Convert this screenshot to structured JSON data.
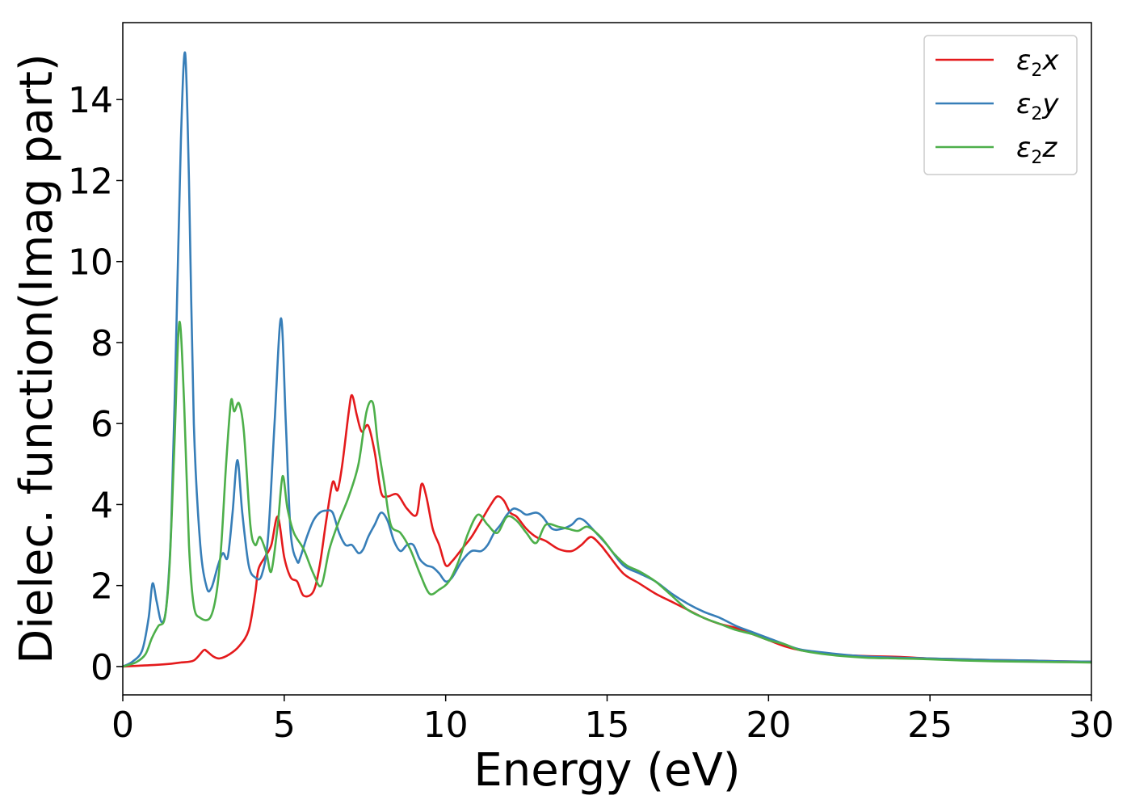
{
  "chart_data": {
    "type": "line",
    "title": "",
    "xlabel": "Energy (eV)",
    "ylabel": "Dielec. function(Imag part)",
    "xlim": [
      0,
      30
    ],
    "ylim": [
      -0.7,
      15.9
    ],
    "xticks": [
      0,
      5,
      10,
      15,
      20,
      25,
      30
    ],
    "yticks": [
      0,
      2,
      4,
      6,
      8,
      10,
      12,
      14
    ],
    "grid": false,
    "legend_position": "top-right",
    "series": [
      {
        "name": "ε2x",
        "legend_base": "ε",
        "legend_sub": "2",
        "legend_var": "x",
        "color": "#e41a1c",
        "x": [
          0,
          0.5,
          1.0,
          1.5,
          1.8,
          2.2,
          2.5,
          2.6,
          2.8,
          3.0,
          3.3,
          3.6,
          3.9,
          4.1,
          4.2,
          4.4,
          4.6,
          4.8,
          5.0,
          5.2,
          5.4,
          5.6,
          5.9,
          6.1,
          6.3,
          6.5,
          6.65,
          6.8,
          7.0,
          7.1,
          7.25,
          7.4,
          7.6,
          7.8,
          8.0,
          8.2,
          8.5,
          8.8,
          9.1,
          9.25,
          9.4,
          9.6,
          9.8,
          10.0,
          10.2,
          10.5,
          10.8,
          11.1,
          11.4,
          11.6,
          11.8,
          12.0,
          12.2,
          12.5,
          12.8,
          13.1,
          13.5,
          13.9,
          14.2,
          14.5,
          14.8,
          15.0,
          15.5,
          16.0,
          16.5,
          17.0,
          17.5,
          18.0,
          18.5,
          19.0,
          19.5,
          20.0,
          20.5,
          21.0,
          21.5,
          22.0,
          23.0,
          24.0,
          25.0,
          26.0,
          27.0,
          28.0,
          29.0,
          30.0
        ],
        "y": [
          0.0,
          0.02,
          0.04,
          0.07,
          0.1,
          0.15,
          0.4,
          0.38,
          0.25,
          0.2,
          0.3,
          0.5,
          0.9,
          1.8,
          2.4,
          2.7,
          3.0,
          3.7,
          2.7,
          2.2,
          2.1,
          1.75,
          1.85,
          2.5,
          3.6,
          4.55,
          4.35,
          5.0,
          6.3,
          6.7,
          6.2,
          5.8,
          5.95,
          5.3,
          4.3,
          4.2,
          4.25,
          3.9,
          3.75,
          4.5,
          4.2,
          3.4,
          3.0,
          2.5,
          2.6,
          2.9,
          3.2,
          3.6,
          4.0,
          4.2,
          4.1,
          3.8,
          3.7,
          3.4,
          3.2,
          3.1,
          2.9,
          2.85,
          3.0,
          3.2,
          3.0,
          2.8,
          2.3,
          2.05,
          1.8,
          1.6,
          1.4,
          1.2,
          1.05,
          0.95,
          0.8,
          0.65,
          0.5,
          0.4,
          0.35,
          0.3,
          0.26,
          0.24,
          0.2,
          0.18,
          0.16,
          0.15,
          0.13,
          0.12
        ]
      },
      {
        "name": "ε2y",
        "legend_base": "ε",
        "legend_sub": "2",
        "legend_var": "y",
        "color": "#377eb8",
        "x": [
          0,
          0.3,
          0.6,
          0.8,
          0.92,
          1.05,
          1.2,
          1.35,
          1.5,
          1.65,
          1.8,
          1.93,
          2.05,
          2.2,
          2.4,
          2.6,
          2.75,
          2.95,
          3.1,
          3.25,
          3.4,
          3.55,
          3.7,
          3.9,
          4.1,
          4.3,
          4.5,
          4.7,
          4.9,
          5.05,
          5.2,
          5.4,
          5.5,
          5.7,
          5.9,
          6.1,
          6.3,
          6.5,
          6.7,
          6.9,
          7.1,
          7.3,
          7.45,
          7.6,
          7.8,
          8.0,
          8.2,
          8.4,
          8.6,
          8.8,
          9.0,
          9.2,
          9.4,
          9.6,
          9.8,
          10.0,
          10.2,
          10.5,
          10.8,
          11.1,
          11.3,
          11.5,
          11.7,
          11.9,
          12.1,
          12.3,
          12.5,
          12.8,
          13.0,
          13.3,
          13.6,
          13.9,
          14.1,
          14.3,
          14.6,
          15.0,
          15.5,
          16.0,
          16.5,
          17.0,
          17.5,
          18.0,
          18.5,
          19.0,
          19.5,
          20.0,
          20.5,
          21.0,
          22.0,
          23.0,
          24.0,
          25.0,
          26.0,
          27.0,
          28.0,
          29.0,
          30.0
        ],
        "y": [
          0.0,
          0.12,
          0.4,
          1.2,
          2.05,
          1.6,
          1.1,
          1.5,
          3.5,
          8.0,
          13.0,
          15.15,
          12.0,
          6.0,
          3.0,
          1.95,
          1.95,
          2.5,
          2.8,
          2.7,
          3.8,
          5.1,
          3.8,
          2.5,
          2.2,
          2.25,
          3.2,
          6.0,
          8.6,
          6.0,
          3.3,
          2.6,
          2.7,
          3.2,
          3.6,
          3.8,
          3.85,
          3.8,
          3.3,
          3.0,
          3.0,
          2.8,
          2.9,
          3.2,
          3.5,
          3.8,
          3.6,
          3.1,
          2.85,
          3.0,
          3.0,
          2.65,
          2.5,
          2.45,
          2.3,
          2.1,
          2.2,
          2.6,
          2.85,
          2.85,
          3.0,
          3.3,
          3.5,
          3.75,
          3.9,
          3.85,
          3.75,
          3.8,
          3.7,
          3.4,
          3.4,
          3.5,
          3.65,
          3.6,
          3.35,
          3.0,
          2.5,
          2.3,
          2.1,
          1.8,
          1.55,
          1.35,
          1.2,
          1.0,
          0.85,
          0.7,
          0.55,
          0.42,
          0.32,
          0.25,
          0.22,
          0.2,
          0.18,
          0.16,
          0.15,
          0.13,
          0.12
        ]
      },
      {
        "name": "ε2z",
        "legend_base": "ε",
        "legend_sub": "2",
        "legend_var": "z",
        "color": "#4daf4a",
        "x": [
          0,
          0.4,
          0.7,
          0.9,
          1.1,
          1.3,
          1.45,
          1.6,
          1.75,
          1.9,
          2.05,
          2.2,
          2.4,
          2.7,
          2.9,
          3.05,
          3.2,
          3.35,
          3.45,
          3.6,
          3.75,
          3.95,
          4.1,
          4.25,
          4.45,
          4.6,
          4.8,
          4.95,
          5.1,
          5.3,
          5.6,
          5.9,
          6.15,
          6.4,
          6.7,
          7.0,
          7.3,
          7.55,
          7.75,
          7.9,
          8.1,
          8.3,
          8.6,
          8.9,
          9.2,
          9.5,
          9.8,
          10.1,
          10.4,
          10.7,
          11.0,
          11.3,
          11.6,
          11.9,
          12.2,
          12.5,
          12.8,
          13.1,
          13.5,
          13.8,
          14.1,
          14.4,
          14.8,
          15.2,
          15.6,
          16.0,
          16.5,
          17.0,
          17.5,
          18.0,
          18.5,
          19.0,
          19.5,
          20.0,
          20.5,
          21.0,
          22.0,
          23.0,
          24.0,
          25.0,
          26.0,
          27.0,
          28.0,
          29.0,
          30.0
        ],
        "y": [
          0.0,
          0.1,
          0.3,
          0.7,
          1.0,
          1.2,
          2.5,
          5.5,
          8.5,
          6.5,
          3.0,
          1.5,
          1.2,
          1.2,
          1.8,
          3.0,
          5.0,
          6.55,
          6.3,
          6.5,
          5.8,
          3.5,
          3.0,
          3.2,
          2.8,
          2.35,
          3.5,
          4.7,
          3.9,
          3.3,
          2.9,
          2.3,
          2.0,
          2.9,
          3.6,
          4.2,
          5.0,
          6.3,
          6.5,
          5.5,
          4.5,
          3.5,
          3.3,
          2.9,
          2.3,
          1.8,
          1.9,
          2.1,
          2.6,
          3.3,
          3.75,
          3.5,
          3.3,
          3.7,
          3.6,
          3.3,
          3.05,
          3.5,
          3.45,
          3.4,
          3.35,
          3.45,
          3.2,
          2.8,
          2.5,
          2.35,
          2.1,
          1.75,
          1.4,
          1.2,
          1.05,
          0.9,
          0.8,
          0.65,
          0.55,
          0.4,
          0.28,
          0.22,
          0.2,
          0.18,
          0.15,
          0.13,
          0.12,
          0.11,
          0.1
        ]
      }
    ]
  }
}
